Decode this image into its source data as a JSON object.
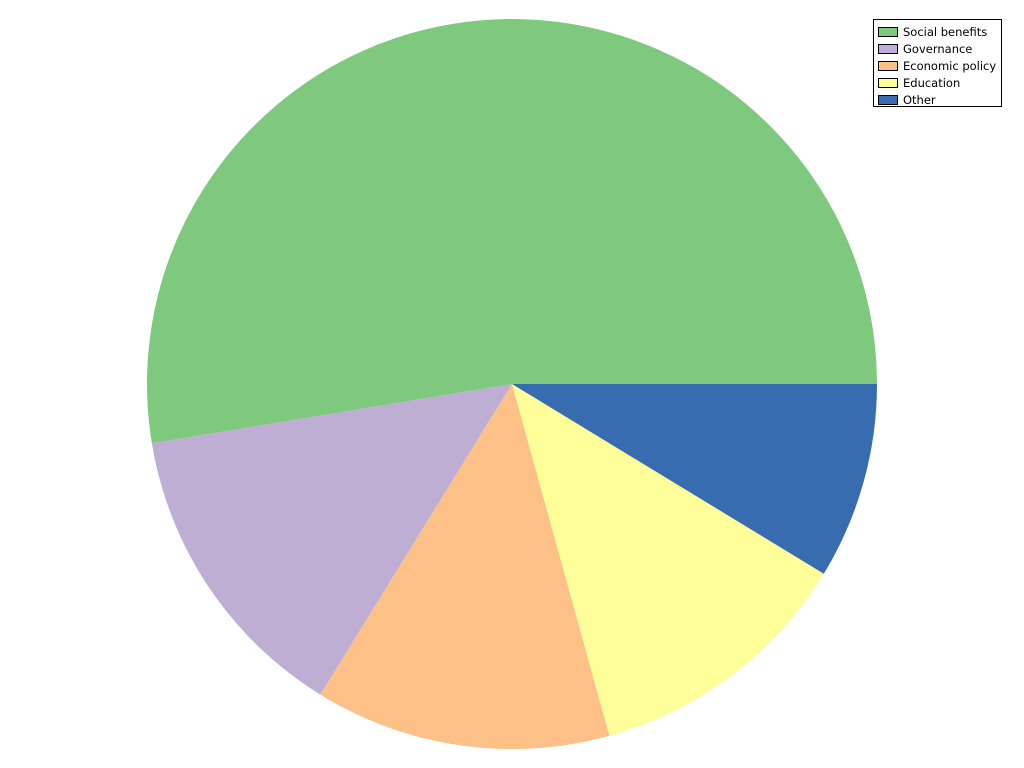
{
  "chart_data": {
    "type": "pie",
    "title": "",
    "legend_placement": "top-right",
    "start_angle_deg": 0,
    "direction": "counterclockwise",
    "slices": [
      {
        "label": "Social benefits",
        "value": 52.6,
        "color": "#7fc97f"
      },
      {
        "label": "Governance",
        "value": 13.6,
        "color": "#beaed4"
      },
      {
        "label": "Economic policy",
        "value": 13.1,
        "color": "#fdc086"
      },
      {
        "label": "Education",
        "value": 12.0,
        "color": "#ffff99"
      },
      {
        "label": "Other",
        "value": 8.7,
        "color": "#386cb0"
      }
    ]
  }
}
